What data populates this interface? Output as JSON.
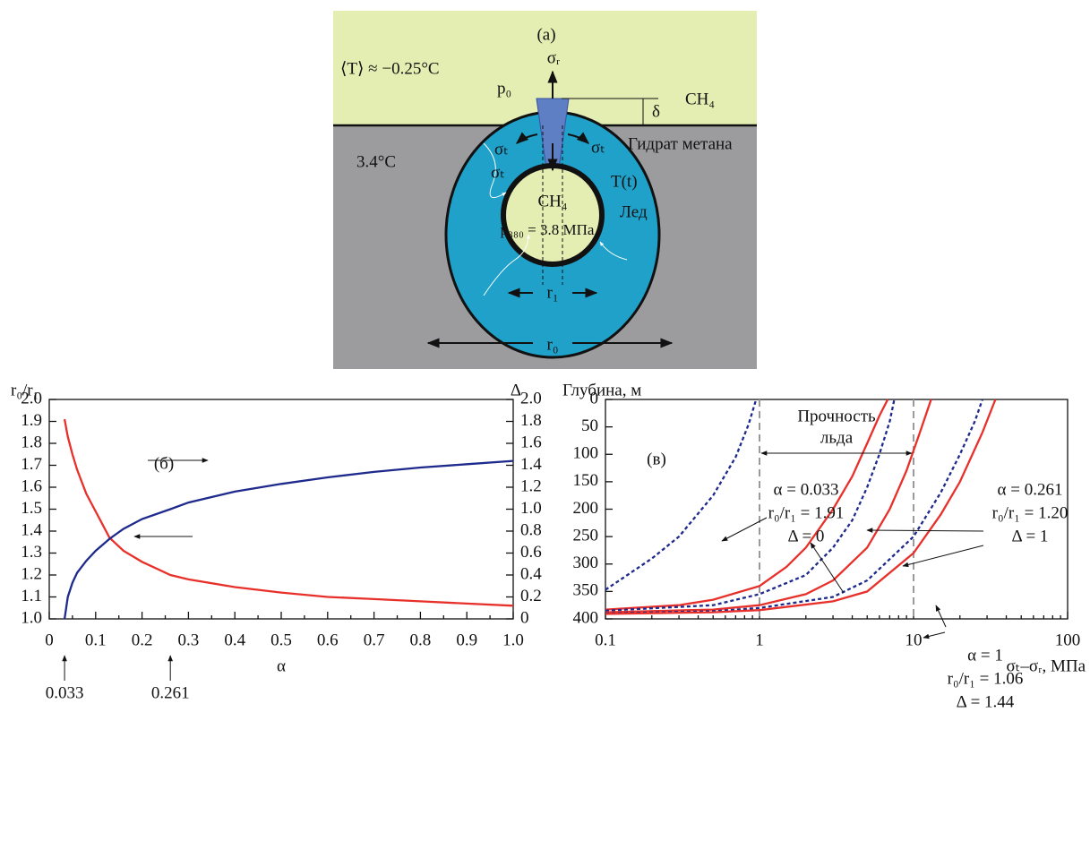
{
  "diagram": {
    "panel_label": "(a)",
    "top_temperature": "⟨T⟩ ≈ −0.25°C",
    "sigma_r": "σᵣ",
    "p0": "p₀",
    "delta": "δ",
    "gas_top": "CH₄",
    "hydrate": "Гидрат метана",
    "bottom_temperature": "3.4°C",
    "sigma_t_left": "σₜ",
    "sigma_t_right": "σₜ",
    "sigma_t_inner": "σₜ",
    "gas_inner": "CH₄",
    "temperature_t": "T(t)",
    "ice": "Лед",
    "pressure": "p₃₈₀ = 3.8 МПа",
    "r1": "r₁",
    "r0": "r₀"
  },
  "chart_data": [
    {
      "type": "line",
      "panel_label": "(б)",
      "y_label": "r₀/r₁",
      "y2_label": "Δ",
      "x_label": "α",
      "x": [
        0.033,
        0.04,
        0.05,
        0.06,
        0.08,
        0.1,
        0.13,
        0.16,
        0.2,
        0.261,
        0.3,
        0.4,
        0.5,
        0.6,
        0.7,
        0.8,
        0.9,
        1.0
      ],
      "series": [
        {
          "color": "#e8302a",
          "values": [
            1.91,
            1.83,
            1.75,
            1.68,
            1.57,
            1.49,
            1.37,
            1.31,
            1.26,
            1.2,
            1.18,
            1.145,
            1.12,
            1.1,
            1.09,
            1.08,
            1.07,
            1.06
          ]
        },
        {
          "color": "#1e2a8c",
          "axis": "y2",
          "values": [
            0,
            0.2,
            0.33,
            0.42,
            0.53,
            0.62,
            0.73,
            0.82,
            0.91,
            1.0,
            1.06,
            1.16,
            1.23,
            1.29,
            1.34,
            1.38,
            1.41,
            1.44
          ]
        }
      ],
      "xlim": [
        0,
        1
      ],
      "xticks": [
        0,
        0.1,
        0.2,
        0.3,
        0.4,
        0.5,
        0.6,
        0.7,
        0.8,
        0.9,
        {
          "value": 1,
          "label": "1.0"
        }
      ],
      "ylim": [
        1,
        2
      ],
      "yticks": [
        {
          "value": 1,
          "label": "1.0"
        },
        1.1,
        1.2,
        1.3,
        1.4,
        1.5,
        1.6,
        1.7,
        1.8,
        1.9,
        {
          "value": 2,
          "label": "2.0"
        }
      ],
      "y2lim": [
        0,
        2
      ],
      "y2ticks": [
        0,
        0.2,
        0.4,
        0.6,
        0.8,
        {
          "value": 1,
          "label": "1.0"
        },
        1.2,
        1.4,
        1.6,
        1.8,
        {
          "value": 2,
          "label": "2.0"
        }
      ],
      "x_markers": [
        0.033,
        0.261
      ]
    },
    {
      "type": "line",
      "panel_label": "(в)",
      "y_label": "Глубина, м",
      "x_label": "σₜ–σᵣ, МПа",
      "log_x": true,
      "inverted_y": true,
      "strength_label": [
        "Прочность",
        "льда"
      ],
      "vlines": [
        1,
        10
      ],
      "annotations": [
        [
          "α = 0.033",
          "r₀/r₁ = 1.91",
          "Δ = 0"
        ],
        [
          "α = 0.261",
          "r₀/r₁ = 1.20",
          "Δ = 1"
        ],
        [
          "α = 1",
          "r₀/r₁ = 1.06",
          "Δ = 1.44"
        ]
      ],
      "series": [
        {
          "color": "#1e2a8c",
          "dashed": true,
          "x": [
            0.1,
            0.2,
            0.3,
            0.5,
            0.7,
            0.85,
            0.95
          ],
          "values": [
            347,
            290,
            250,
            175,
            105,
            45,
            0
          ]
        },
        {
          "color": "#e8302a",
          "x": [
            0.1,
            0.3,
            0.5,
            1,
            1.5,
            2,
            3,
            4,
            5,
            6,
            6.8
          ],
          "values": [
            383,
            375,
            365,
            340,
            305,
            270,
            200,
            140,
            80,
            30,
            0
          ]
        },
        {
          "color": "#1e2a8c",
          "dashed": true,
          "x": [
            0.1,
            0.5,
            1,
            2,
            3,
            4,
            5,
            6,
            7,
            7.5
          ],
          "values": [
            385,
            375,
            355,
            320,
            270,
            220,
            160,
            100,
            40,
            0
          ]
        },
        {
          "color": "#e8302a",
          "x": [
            0.1,
            0.5,
            1,
            2,
            3,
            5,
            7,
            9,
            11,
            13
          ],
          "values": [
            388,
            383,
            375,
            355,
            330,
            270,
            200,
            130,
            60,
            0
          ]
        },
        {
          "color": "#1e2a8c",
          "dashed": true,
          "x": [
            0.1,
            0.5,
            1,
            3,
            5,
            10,
            15,
            20,
            25,
            28
          ],
          "values": [
            390,
            386,
            380,
            360,
            330,
            250,
            170,
            100,
            40,
            0
          ]
        },
        {
          "color": "#e8302a",
          "x": [
            0.1,
            0.5,
            1,
            3,
            5,
            10,
            15,
            20,
            28,
            34
          ],
          "values": [
            391,
            388,
            384,
            368,
            350,
            280,
            210,
            150,
            60,
            0
          ]
        }
      ],
      "xlim": [
        0.1,
        100
      ],
      "xticks": [
        0.1,
        1,
        10,
        100
      ],
      "ylim": [
        0,
        400
      ],
      "yticks": [
        0,
        50,
        100,
        150,
        200,
        250,
        300,
        350,
        400
      ]
    }
  ]
}
